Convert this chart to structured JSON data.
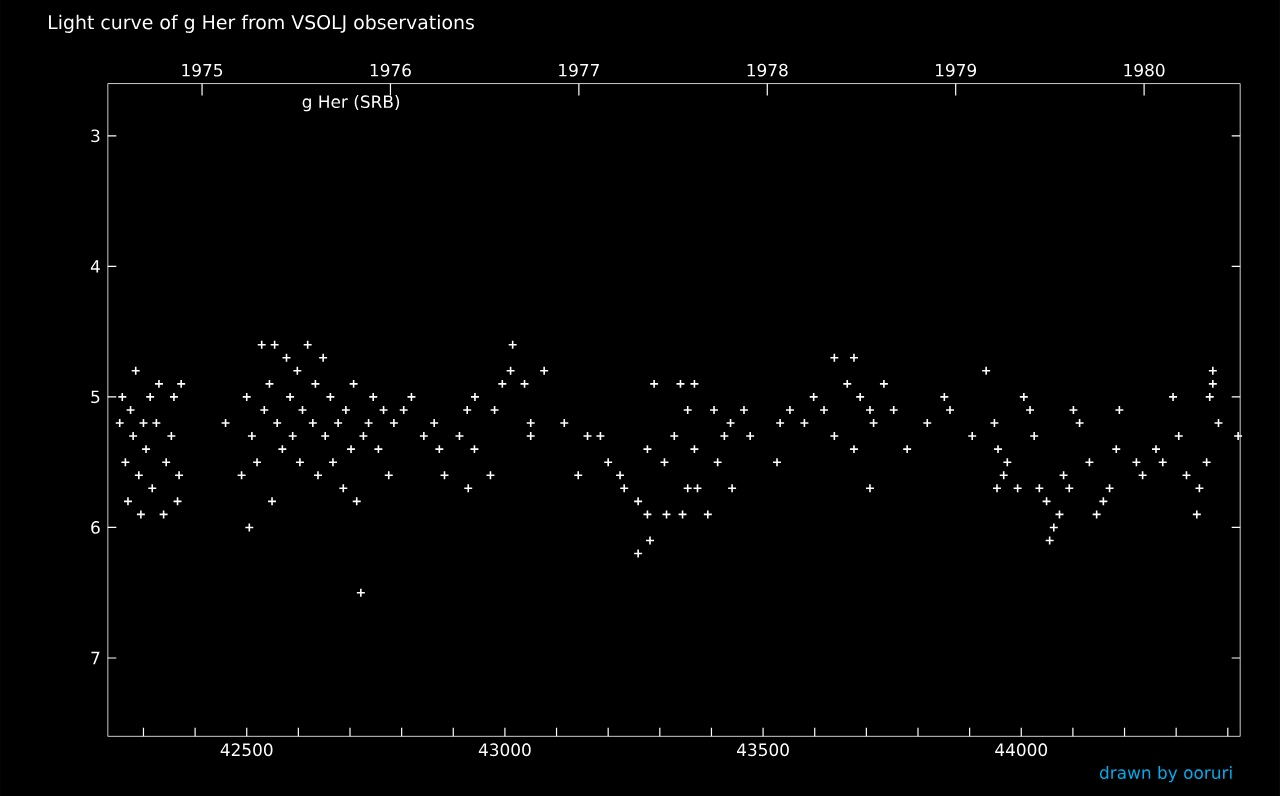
{
  "chart_data": {
    "type": "scatter",
    "title": "Light curve of g Her from VSOLJ observations",
    "annotations": [
      "g Her (SRB)",
      "drawn by ooruri"
    ],
    "x": [
      42254,
      42259,
      42265,
      42270,
      42275,
      42280,
      42285,
      42291,
      42295,
      42300,
      42305,
      42313,
      42317,
      42325,
      42330,
      42339,
      42344,
      42354,
      42359,
      42366,
      42369,
      42373,
      42459,
      42490,
      42500,
      42505,
      42510,
      42520,
      42529,
      42534,
      42544,
      42549,
      42554,
      42559,
      42569,
      42577,
      42584,
      42589,
      42598,
      42603,
      42608,
      42618,
      42628,
      42633,
      42638,
      42648,
      42652,
      42662,
      42667,
      42677,
      42687,
      42692,
      42702,
      42707,
      42713,
      42721,
      42726,
      42736,
      42745,
      42755,
      42765,
      42775,
      42785,
      42804,
      42819,
      42843,
      42863,
      42873,
      42883,
      42912,
      42927,
      42942,
      42941,
      42929,
      42972,
      43015,
      43011,
      42995,
      43076,
      43038,
      42980,
      43050,
      43050,
      43115,
      43160,
      43185,
      43142,
      43200,
      43223,
      43231,
      43258,
      43258,
      43276,
      43276,
      43281,
      43289,
      43309,
      43313,
      43328,
      43340,
      43344,
      43354,
      43354,
      43367,
      43367,
      43373,
      43393,
      43405,
      43412,
      43425,
      43437,
      43440,
      43463,
      43475,
      43527,
      43533,
      43552,
      43580,
      43598,
      43618,
      43638,
      43638,
      43663,
      43676,
      43676,
      43688,
      43734,
      43707,
      43707,
      43753,
      43714,
      43779,
      43818,
      43851,
      43862,
      43905,
      43932,
      43948,
      43955,
      43966,
      43973,
      43953,
      43993,
      44005,
      44017,
      44025,
      44035,
      44049,
      44055,
      44063,
      44074,
      44082,
      44093,
      44101,
      44113,
      44132,
      44146,
      44159,
      44171,
      44184,
      44190,
      44223,
      44235,
      44261,
      44274,
      44294,
      44305,
      44320,
      44340,
      44345,
      44359,
      44365,
      44371,
      44371,
      44382,
      44420
    ],
    "series": [
      {
        "color": "#ffffff",
        "values": [
          5.2,
          5.0,
          5.5,
          5.8,
          5.1,
          5.3,
          4.8,
          5.6,
          5.9,
          5.2,
          5.4,
          5.0,
          5.7,
          5.2,
          4.9,
          5.9,
          5.5,
          5.3,
          5.0,
          5.8,
          5.6,
          4.9,
          5.2,
          5.6,
          5.0,
          6.0,
          5.3,
          5.5,
          4.6,
          5.1,
          4.9,
          5.8,
          4.6,
          5.2,
          5.4,
          4.7,
          5.0,
          5.3,
          4.8,
          5.5,
          5.1,
          4.6,
          5.2,
          4.9,
          5.6,
          4.7,
          5.3,
          5.0,
          5.5,
          5.2,
          5.7,
          5.1,
          5.4,
          4.9,
          5.8,
          6.5,
          5.3,
          5.2,
          5.0,
          5.4,
          5.1,
          5.6,
          5.2,
          5.1,
          5.0,
          5.3,
          5.2,
          5.4,
          5.6,
          5.3,
          5.1,
          5.0,
          5.4,
          5.7,
          5.6,
          4.6,
          4.8,
          4.9,
          4.8,
          4.9,
          5.1,
          5.2,
          5.3,
          5.2,
          5.3,
          5.3,
          5.6,
          5.5,
          5.6,
          5.7,
          5.8,
          6.2,
          5.9,
          5.4,
          6.1,
          4.9,
          5.5,
          5.9,
          5.3,
          4.9,
          5.9,
          5.1,
          5.7,
          5.4,
          4.9,
          5.7,
          5.9,
          5.1,
          5.5,
          5.3,
          5.2,
          5.7,
          5.1,
          5.3,
          5.5,
          5.2,
          5.1,
          5.2,
          5.0,
          5.1,
          4.7,
          5.3,
          4.9,
          4.7,
          5.4,
          5.0,
          4.9,
          5.1,
          5.7,
          5.1,
          5.2,
          5.4,
          5.2,
          5.0,
          5.1,
          5.3,
          4.8,
          5.2,
          5.4,
          5.6,
          5.5,
          5.7,
          5.7,
          5.0,
          5.1,
          5.3,
          5.7,
          5.8,
          6.1,
          6.0,
          5.9,
          5.6,
          5.7,
          5.1,
          5.2,
          5.5,
          5.9,
          5.8,
          5.7,
          5.4,
          5.1,
          5.5,
          5.6,
          5.4,
          5.5,
          5.0,
          5.3,
          5.6,
          5.9,
          5.7,
          5.5,
          5.0,
          4.8,
          4.9,
          5.2,
          5.3
        ]
      }
    ],
    "marker": "cross",
    "xlim": [
      42231,
      44424
    ],
    "xticks": [
      {
        "value": 42300,
        "label": null
      },
      {
        "value": 42400,
        "label": null
      },
      42500,
      {
        "value": 42600,
        "label": null
      },
      {
        "value": 42700,
        "label": null
      },
      {
        "value": 42800,
        "label": null
      },
      {
        "value": 42900,
        "label": null
      },
      43000,
      {
        "value": 43100,
        "label": null
      },
      {
        "value": 43200,
        "label": null
      },
      {
        "value": 43300,
        "label": null
      },
      {
        "value": 43400,
        "label": null
      },
      43500,
      {
        "value": 43600,
        "label": null
      },
      {
        "value": 43700,
        "label": null
      },
      {
        "value": 43800,
        "label": null
      },
      {
        "value": 43900,
        "label": null
      },
      44000,
      {
        "value": 44100,
        "label": null
      },
      {
        "value": 44200,
        "label": null
      },
      {
        "value": 44300,
        "label": null
      },
      {
        "value": 44400,
        "label": null
      }
    ],
    "x2lim": [
      1974.5,
      1980.51
    ],
    "x2ticks": [
      1975,
      1976,
      1977,
      1978,
      1979,
      1980
    ],
    "ylim": [
      7.6,
      2.6
    ],
    "yticks": [
      3,
      4,
      5,
      6,
      7
    ],
    "grid": false
  }
}
